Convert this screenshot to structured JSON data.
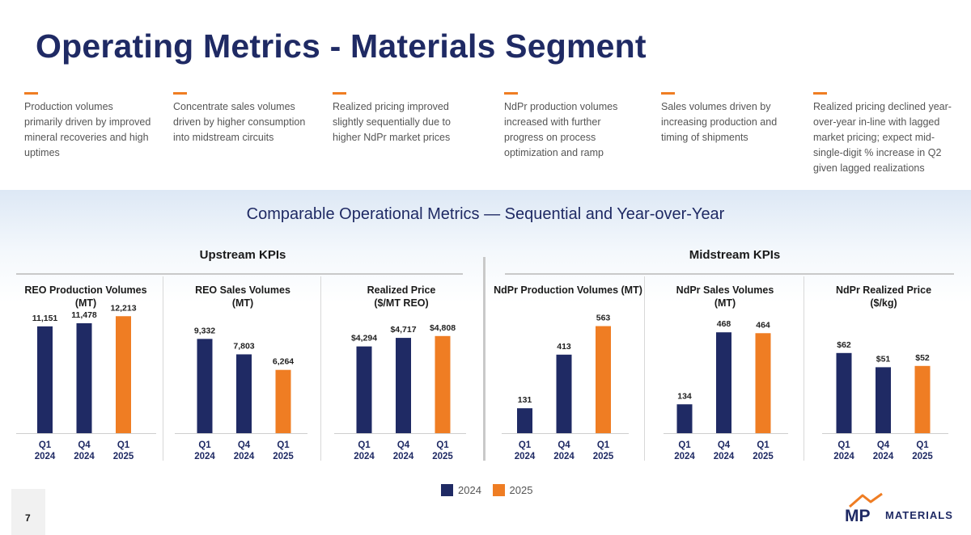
{
  "title": "Operating Metrics - Materials Segment",
  "bullets": [
    {
      "text": "Production volumes primarily driven by improved mineral recoveries and high uptimes"
    },
    {
      "text": "Concentrate sales volumes driven by higher consumption into midstream circuits"
    },
    {
      "text": "Realized pricing improved slightly sequentially due to higher NdPr market prices"
    },
    {
      "text": "NdPr production volumes increased with further progress on process optimization and ramp"
    },
    {
      "text": "Sales volumes driven by increasing production and timing of shipments"
    },
    {
      "text": "Realized pricing declined year-over-year in-line with lagged market pricing; expect mid-single-digit % increase in Q2 given lagged realizations"
    }
  ],
  "subtitle": "Comparable Operational Metrics — Sequential and Year-over-Year",
  "groups": {
    "upstream": "Upstream KPIs",
    "midstream": "Midstream KPIs"
  },
  "legend": [
    {
      "label": "2024",
      "color": "#1f2a64"
    },
    {
      "label": "2025",
      "color": "#ef7d23"
    }
  ],
  "page_number": "7",
  "logo": {
    "mark": "MP",
    "text": "MATERIALS"
  },
  "chart_data": [
    {
      "type": "bar",
      "title": "REO Production Volumes (MT)",
      "categories": [
        "Q1 2024",
        "Q4 2024",
        "Q1 2025"
      ],
      "values": [
        11151,
        11478,
        12213
      ],
      "labels": [
        "11,151",
        "11,478",
        "12,213"
      ],
      "ylim": [
        0,
        13500
      ]
    },
    {
      "type": "bar",
      "title": "REO Sales Volumes (MT)",
      "categories": [
        "Q1 2024",
        "Q4 2024",
        "Q1 2025"
      ],
      "values": [
        9332,
        7803,
        6264
      ],
      "labels": [
        "9,332",
        "7,803",
        "6,264"
      ],
      "ylim": [
        0,
        12800
      ]
    },
    {
      "type": "bar",
      "title": "Realized Price ($/MT REO)",
      "categories": [
        "Q1 2024",
        "Q4 2024",
        "Q1 2025"
      ],
      "values": [
        4294,
        4717,
        4808
      ],
      "labels": [
        "$4,294",
        "$4,717",
        "$4,808"
      ],
      "ylim": [
        0,
        6400
      ]
    },
    {
      "type": "bar",
      "title": "NdPr Production Volumes (MT)",
      "categories": [
        "Q1 2024",
        "Q4 2024",
        "Q1 2025"
      ],
      "values": [
        131,
        413,
        563
      ],
      "labels": [
        "131",
        "413",
        "563"
      ],
      "ylim": [
        0,
        680
      ]
    },
    {
      "type": "bar",
      "title": "NdPr Sales Volumes (MT)",
      "categories": [
        "Q1 2024",
        "Q4 2024",
        "Q1 2025"
      ],
      "values": [
        134,
        468,
        464
      ],
      "labels": [
        "134",
        "468",
        "464"
      ],
      "ylim": [
        0,
        600
      ]
    },
    {
      "type": "bar",
      "title": "NdPr Realized Price ($/kg)",
      "categories": [
        "Q1 2024",
        "Q4 2024",
        "Q1 2025"
      ],
      "values": [
        62,
        51,
        52
      ],
      "labels": [
        "$62",
        "$51",
        "$52"
      ],
      "ylim": [
        0,
        100
      ]
    }
  ]
}
